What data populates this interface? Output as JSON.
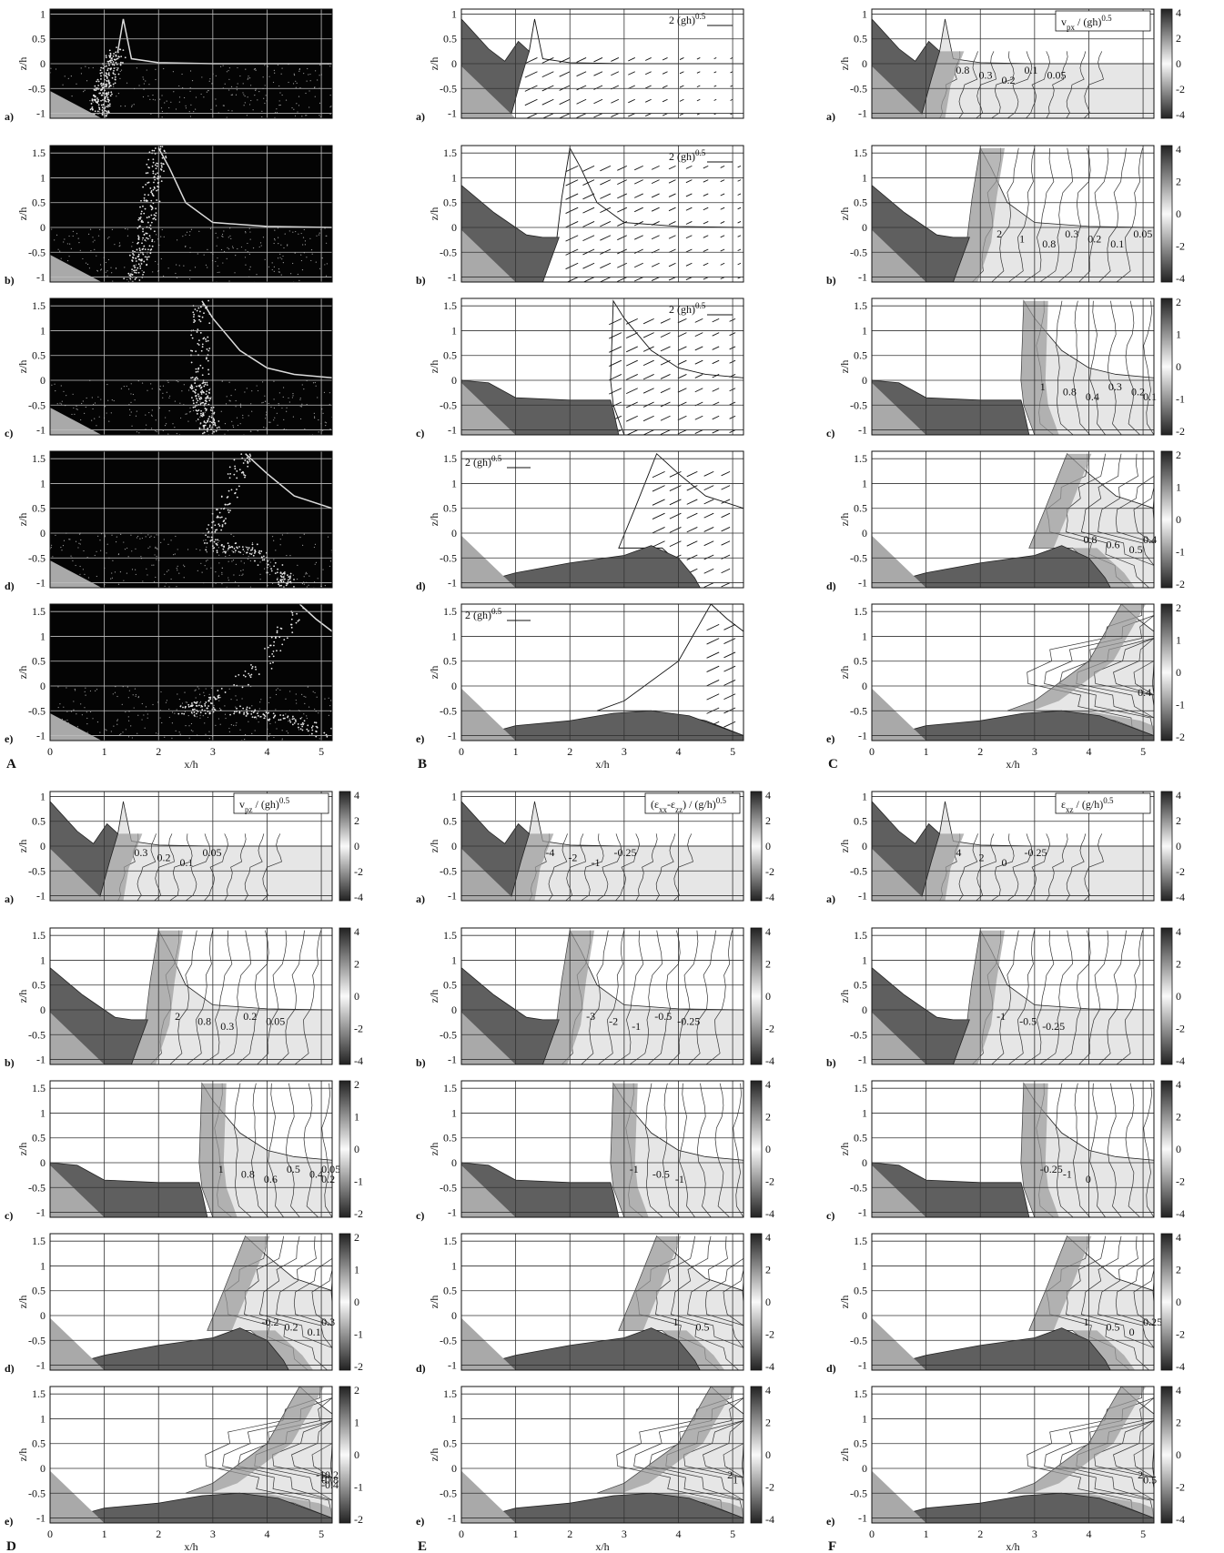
{
  "figure": {
    "column_letters": [
      "A",
      "B",
      "C",
      "D",
      "E",
      "F"
    ],
    "row_letters": [
      "a)",
      "b)",
      "c)",
      "d)",
      "e)"
    ],
    "xlabel": "x/h",
    "ylabel": "z/h",
    "x_ticks": [
      "0",
      "1",
      "2",
      "3",
      "4",
      "5"
    ],
    "y_ticks_row_a": [
      "1",
      "0.5",
      "0",
      "-0.5",
      "-1"
    ],
    "y_ticks_other": [
      "1.5",
      "1",
      "0.5",
      "0",
      "-0.5",
      "-1"
    ],
    "xlim": [
      0,
      5.2
    ],
    "ylim_row_a": [
      -1.1,
      1.1
    ],
    "ylim_other": [
      -1.1,
      1.65
    ]
  },
  "panels": {
    "A": {
      "kind": "photo"
    },
    "B": {
      "kind": "vectors",
      "scale_label": "2 (gh)",
      "scale_exp": "0.5"
    },
    "C": {
      "kind": "contour",
      "title": "v_px / (gh)^0.5",
      "title_main": "v",
      "title_sub": "px",
      "title_rest": " / (gh)",
      "title_exp": "0.5",
      "colorbar_ticks_ab": [
        "4",
        "2",
        "0",
        "-2",
        "-4"
      ],
      "colorbar_ticks_cde": [
        "2",
        "1",
        "0",
        "-1",
        "-2"
      ],
      "contour_labels": {
        "a": [
          "0.8",
          "0.3",
          "0.2",
          "0.1",
          "0.05"
        ],
        "b": [
          "2",
          "1",
          "0.8",
          "0.3",
          "0.2",
          "0.1",
          "0.05"
        ],
        "c": [
          "1",
          "0.8",
          "0.4",
          "0.3",
          "0.2",
          "0.1"
        ],
        "d": [
          "0.8",
          "0.6",
          "0.5",
          "0.4"
        ],
        "e": [
          "0.4"
        ]
      }
    },
    "D": {
      "kind": "contour",
      "title": "v_pz / (gh)^0.5",
      "title_main": "v",
      "title_sub": "pz",
      "title_rest": " / (gh)",
      "title_exp": "0.5",
      "colorbar_ticks_ab": [
        "4",
        "2",
        "0",
        "-2",
        "-4"
      ],
      "colorbar_ticks_cde": [
        "2",
        "1",
        "0",
        "-1",
        "-2"
      ],
      "contour_labels": {
        "a": [
          "0.3",
          "0.2",
          "0.1",
          "0.05"
        ],
        "b": [
          "2",
          "0.8",
          "0.3",
          "0.2",
          "0.05"
        ],
        "c": [
          "1",
          "0.8",
          "0.6",
          "0.5",
          "0.4",
          "0.2",
          "0.05"
        ],
        "d": [
          "-0.2",
          "0.2",
          "0.1",
          "0.3"
        ],
        "e": [
          "-1",
          "-0.8",
          "-0.4",
          "-0.2",
          "0"
        ]
      }
    },
    "E": {
      "kind": "contour",
      "title": "(ε_xx-ε_zz) / (g/h)^0.5",
      "title_main": "(ε",
      "title_sub": "xx",
      "title_mid": "-ε",
      "title_sub2": "zz",
      "title_rest": ") / (g/h)",
      "title_exp": "0.5",
      "colorbar_ticks_ab": [
        "4",
        "2",
        "0",
        "-2",
        "-4"
      ],
      "colorbar_ticks_cde": [
        "4",
        "2",
        "0",
        "-2",
        "-4"
      ],
      "contour_labels": {
        "a": [
          "-4",
          "-2",
          "-1",
          "-0.25"
        ],
        "b": [
          "-3",
          "-2",
          "-1",
          "-0.5",
          "-0.25"
        ],
        "c": [
          "-1",
          "-0.5",
          "-1"
        ],
        "d": [
          "1",
          "0.5"
        ],
        "e": [
          "2",
          "1"
        ]
      }
    },
    "F": {
      "kind": "contour",
      "title": "ε_xz / (g/h)^0.5",
      "title_main": "ε",
      "title_sub": "xz",
      "title_rest": " / (g/h)",
      "title_exp": "0.5",
      "colorbar_ticks_ab": [
        "4",
        "2",
        "0",
        "-2",
        "-4"
      ],
      "colorbar_ticks_cde": [
        "4",
        "2",
        "0",
        "-2",
        "-4"
      ],
      "contour_labels": {
        "a": [
          "4",
          "2",
          "0",
          "-0.25"
        ],
        "b": [
          "-1",
          "-0.5",
          "-0.25"
        ],
        "c": [
          "-0.25",
          "-1",
          "0"
        ],
        "d": [
          "1",
          "0.5",
          "0",
          "0.25"
        ],
        "e": [
          "2",
          "0.5"
        ]
      }
    }
  },
  "colors": {
    "dark_solid": "#5f5f5f",
    "light_solid": "#a9a9a9",
    "photo_bg": "#040404",
    "grid": "#333333"
  },
  "chart_data": [
    {
      "type": "area",
      "description_series": "free surface and granular deposit profiles",
      "rows": [
        "a",
        "b",
        "c",
        "d",
        "e"
      ],
      "x": [
        0,
        1,
        2,
        3,
        4,
        5
      ],
      "series": [
        {
          "name": "free surface a)",
          "x": [
            1.25,
            2,
            3,
            4,
            5.2
          ],
          "y": [
            0,
            0,
            0,
            0,
            0
          ]
        },
        {
          "name": "free surface b)",
          "x": [
            1.95,
            2.5,
            3,
            4,
            5.2
          ],
          "y": [
            1.6,
            0.45,
            0.1,
            0,
            0
          ]
        },
        {
          "name": "free surface c)",
          "x": [
            2.8,
            3,
            3.5,
            4,
            5.2
          ],
          "y": [
            1.6,
            1.2,
            0.55,
            0.25,
            0.05
          ]
        },
        {
          "name": "free surface d)",
          "x": [
            3.6,
            4,
            4.5,
            5.2
          ],
          "y": [
            1.6,
            1.2,
            0.7,
            0.45
          ]
        },
        {
          "name": "free surface e)",
          "x": [
            4.6,
            5,
            5.2
          ],
          "y": [
            1.6,
            1.3,
            1.1
          ]
        }
      ]
    }
  ]
}
